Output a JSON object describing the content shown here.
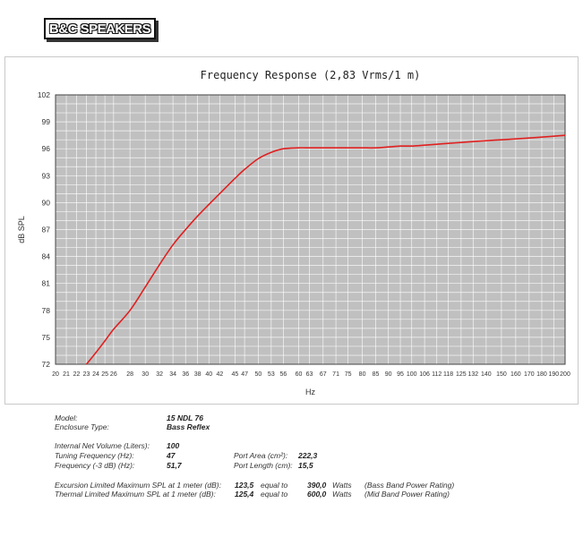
{
  "brand": {
    "logo_text": "B&C SPEAKERS"
  },
  "chart_data": {
    "type": "line",
    "title": "Frequency Response (2,83 Vrms/1 m)",
    "xlabel": "Hz",
    "ylabel": "dB SPL",
    "ylim": [
      72,
      102
    ],
    "y_ticks": [
      "72",
      "75",
      "78",
      "81",
      "84",
      "87",
      "90",
      "93",
      "96",
      "99",
      "102"
    ],
    "x_ticks": [
      "20",
      "21",
      "22",
      "23",
      "24",
      "25",
      "26",
      "28",
      "30",
      "32",
      "34",
      "36",
      "38",
      "40",
      "42",
      "45",
      "47",
      "50",
      "53",
      "56",
      "60",
      "63",
      "67",
      "71",
      "75",
      "80",
      "85",
      "90",
      "95",
      "100",
      "106",
      "112",
      "118",
      "125",
      "132",
      "140",
      "150",
      "160",
      "170",
      "180",
      "190",
      "200"
    ],
    "grid": true,
    "background_color": "#c0c0c0",
    "line_color": "#e02020",
    "series": [
      {
        "x": [
          23,
          24,
          25,
          26,
          28,
          30,
          32,
          34,
          36,
          38,
          40,
          42,
          45,
          47,
          50,
          53,
          56,
          60,
          63,
          67,
          71,
          75,
          80,
          85,
          90,
          95,
          100,
          106,
          112,
          118,
          125,
          132,
          140,
          150,
          160,
          170,
          180,
          190,
          200
        ],
        "y": [
          72.0,
          73.3,
          74.6,
          75.9,
          78.0,
          80.6,
          83.1,
          85.3,
          87.0,
          88.5,
          89.8,
          91.0,
          92.7,
          93.7,
          94.9,
          95.6,
          96.0,
          96.1,
          96.1,
          96.1,
          96.1,
          96.1,
          96.1,
          96.1,
          96.2,
          96.3,
          96.3,
          96.4,
          96.5,
          96.6,
          96.7,
          96.8,
          96.9,
          97.0,
          97.1,
          97.2,
          97.3,
          97.4,
          97.5
        ]
      }
    ]
  },
  "specs": {
    "model_label": "Model:",
    "model_value": "15 NDL 76",
    "enclosure_label": "Enclosure Type:",
    "enclosure_value": "Bass Reflex",
    "volume_label": "Internal  Net Volume (Liters):",
    "volume_value": "100",
    "tuning_label": "Tuning Frequency (Hz):",
    "tuning_value": "47",
    "freq3db_label": "Frequency (-3 dB) (Hz):",
    "freq3db_value": "51,7",
    "port_area_label": "Port Area (cm²):",
    "port_area_value": "222,3",
    "port_length_label": "Port Length (cm):",
    "port_length_value": "15,5",
    "excursion_label": "Excursion Limited Maximum SPL at 1 meter (dB):",
    "excursion_value": "123,5",
    "excursion_equal": "equal to",
    "excursion_watts_value": "390,0",
    "excursion_watts_label": "Watts",
    "excursion_note": "(Bass Band Power Rating)",
    "thermal_label": "Thermal Limited Maximum SPL at 1 meter (dB):",
    "thermal_value": "125,4",
    "thermal_equal": "equal to",
    "thermal_watts_value": "600,0",
    "thermal_watts_label": "Watts",
    "thermal_note": "(Mid Band Power Rating)"
  }
}
